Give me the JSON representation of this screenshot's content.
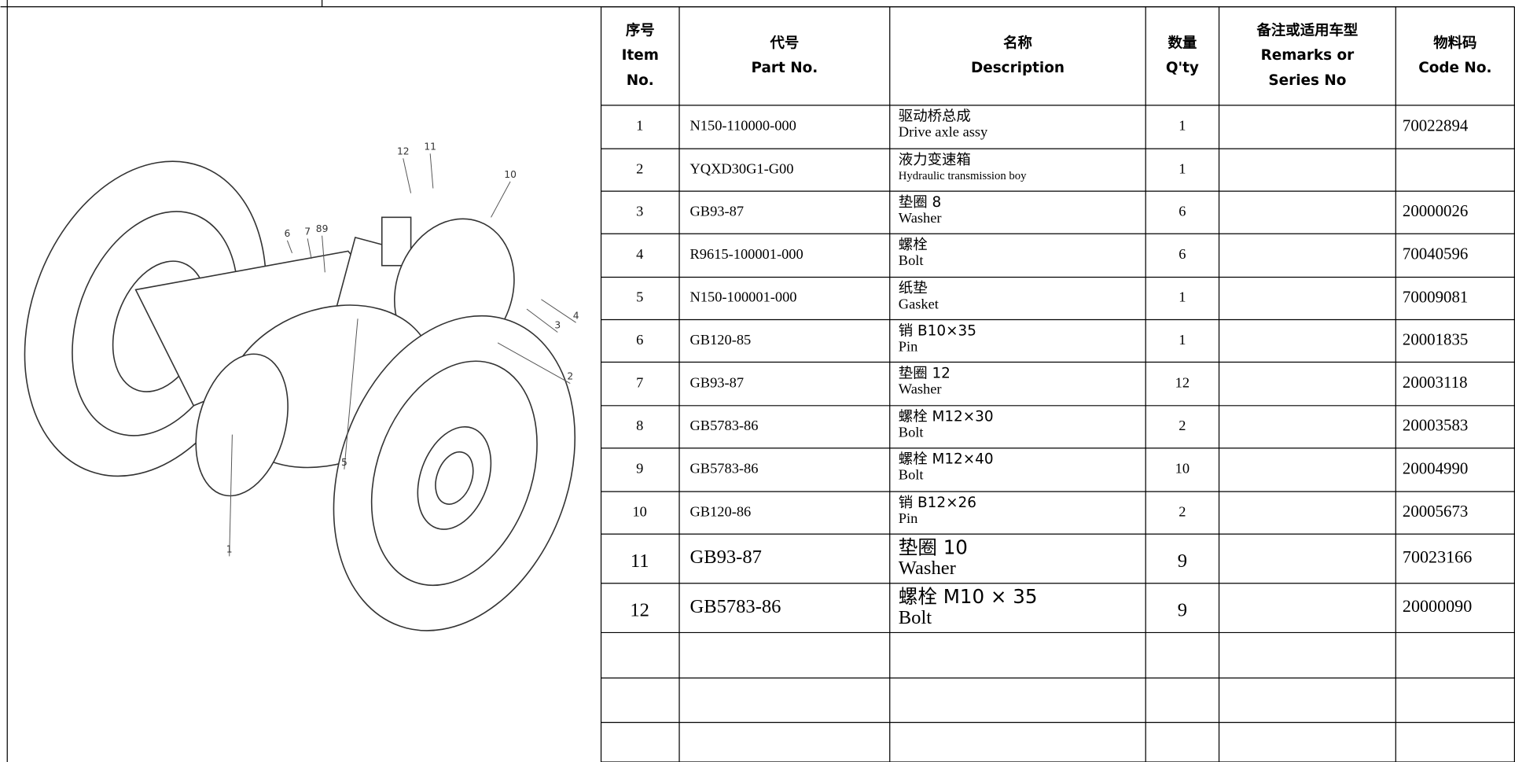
{
  "callouts": [
    "12",
    "11",
    "10",
    "6",
    "7",
    "89",
    "4",
    "3",
    "2",
    "5",
    "1"
  ],
  "table": {
    "header": [
      [
        "序号",
        "Item",
        "No."
      ],
      [
        "代号",
        "Part No."
      ],
      [
        "名称",
        "Description"
      ],
      [
        "数量",
        "Q'ty"
      ],
      [
        "备注或适用车型",
        "Remarks or",
        "Series No"
      ],
      [
        "物料码",
        "Code No."
      ]
    ],
    "rows": [
      {
        "item": 1,
        "part_no": "N150-110000-000",
        "name_cn": "驱动桥总成",
        "name_en": "Drive axle assy",
        "qty": 1,
        "code": "70022894"
      },
      {
        "item": 2,
        "part_no": "YQXD30G1-G00",
        "name_cn": "液力变速箱",
        "name_en": "Hydraulic transmission boy",
        "qty": 1
      },
      {
        "item": 3,
        "part_no": "GB93-87",
        "name_cn": "垫圈 8",
        "name_en": "Washer",
        "qty": 6,
        "code": "20000026"
      },
      {
        "item": 4,
        "part_no": "R9615-100001-000",
        "name_cn": "螺栓",
        "name_en": "Bolt",
        "qty": 6,
        "code": "70040596"
      },
      {
        "item": 5,
        "part_no": "N150-100001-000",
        "name_cn": "纸垫",
        "name_en": "Gasket",
        "qty": 1,
        "code": "70009081"
      },
      {
        "item": 6,
        "part_no": "GB120-85",
        "name_cn": "销 B10×35",
        "name_en": "Pin",
        "qty": 1,
        "code": "20001835"
      },
      {
        "item": 7,
        "part_no": "GB93-87",
        "name_cn": "垫圈 12",
        "name_en": "Washer",
        "qty": 12,
        "code": "20003118"
      },
      {
        "item": 8,
        "part_no": "GB5783-86",
        "name_cn": "螺栓 M12×30",
        "name_en": "Bolt",
        "qty": 2,
        "code": "20003583"
      },
      {
        "item": 9,
        "part_no": "GB5783-86",
        "name_cn": "螺栓 M12×40",
        "name_en": "Bolt",
        "qty": 10,
        "code": "20004990"
      },
      {
        "item": 10,
        "part_no": "GB120-86",
        "name_cn": "销 B12×26",
        "name_en": "Pin",
        "qty": 2,
        "code": "20005673"
      },
      {
        "item": 11,
        "part_no": "GB93-87",
        "name_cn": "垫圈 10",
        "name_en": "Washer",
        "qty": 9,
        "code": "70023166"
      },
      {
        "item": 12,
        "part_no": "GB5783-86",
        "name_cn": "螺栓 M10 × 35",
        "name_en": "Bolt",
        "qty": 9,
        "code": "20000090"
      }
    ]
  }
}
